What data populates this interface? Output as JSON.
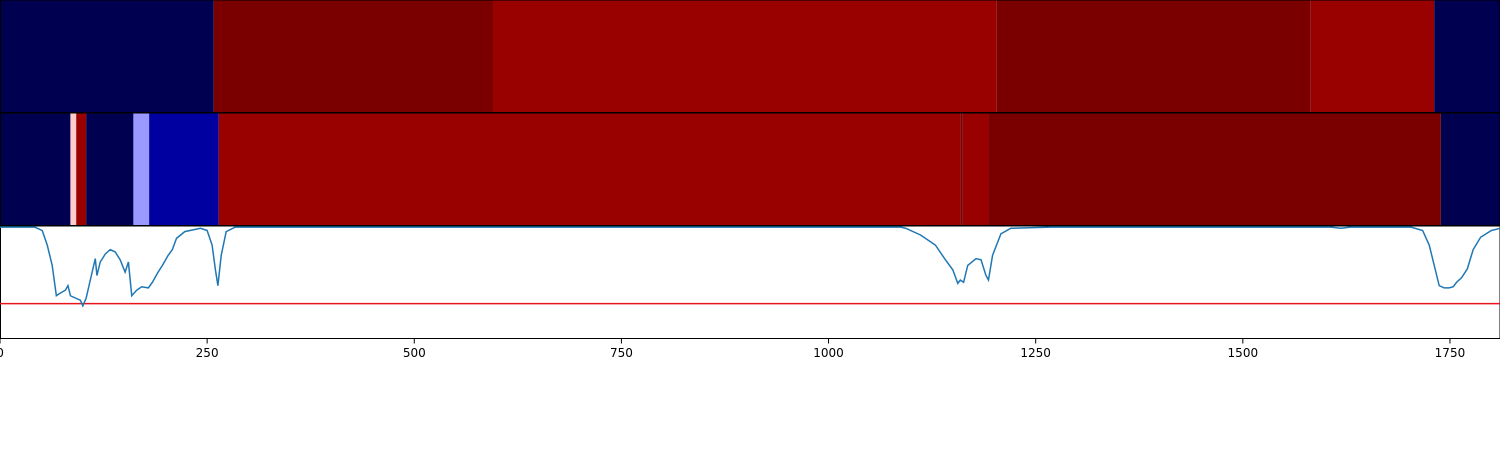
{
  "chart_data": [
    {
      "type": "segments",
      "xlim": [
        0,
        1811
      ],
      "segments": [
        {
          "start": 0,
          "end": 258,
          "color": "#000050"
        },
        {
          "start": 258,
          "end": 595,
          "color": "#7a0000"
        },
        {
          "start": 595,
          "end": 1203,
          "color": "#990000"
        },
        {
          "start": 1203,
          "end": 1582,
          "color": "#7a0000"
        },
        {
          "start": 1582,
          "end": 1731,
          "color": "#990000"
        },
        {
          "start": 1731,
          "end": 1811,
          "color": "#000050"
        }
      ]
    },
    {
      "type": "segments",
      "xlim": [
        0,
        1811
      ],
      "segments": [
        {
          "start": 0,
          "end": 85,
          "color": "#000050"
        },
        {
          "start": 85,
          "end": 92,
          "color": "#ffcccc"
        },
        {
          "start": 92,
          "end": 104,
          "color": "#990000"
        },
        {
          "start": 104,
          "end": 161,
          "color": "#000050"
        },
        {
          "start": 161,
          "end": 180,
          "color": "#9999ff"
        },
        {
          "start": 180,
          "end": 264,
          "color": "#0000a0"
        },
        {
          "start": 264,
          "end": 1159,
          "color": "#990000"
        },
        {
          "start": 1159,
          "end": 1162,
          "color": "#7a0000"
        },
        {
          "start": 1162,
          "end": 1193,
          "color": "#990000"
        },
        {
          "start": 1193,
          "end": 1739,
          "color": "#7a0000"
        },
        {
          "start": 1739,
          "end": 1811,
          "color": "#000050"
        }
      ]
    },
    {
      "type": "line",
      "xlim": [
        0,
        1811
      ],
      "ylim": [
        0,
        1
      ],
      "xticks": [
        0,
        250,
        500,
        750,
        1000,
        1250,
        1500,
        1750
      ],
      "color": "#1f77b4",
      "threshold": 0.31,
      "threshold_color": "#e8141c",
      "x": [
        0,
        42,
        51,
        57,
        63,
        68,
        72,
        79,
        82,
        85,
        91,
        97,
        100,
        104,
        109,
        115,
        117,
        121,
        127,
        133,
        139,
        145,
        151,
        155,
        159,
        165,
        171,
        179,
        184,
        190,
        196,
        203,
        208,
        213,
        223,
        242,
        250,
        256,
        260,
        263,
        267,
        273,
        284,
        362,
        1087,
        1093,
        1111,
        1129,
        1141,
        1150,
        1156,
        1159,
        1163,
        1168,
        1178,
        1184,
        1190,
        1193,
        1198,
        1208,
        1220,
        1268,
        1606,
        1618,
        1630,
        1703,
        1717,
        1725,
        1731,
        1737,
        1743,
        1749,
        1754,
        1758,
        1764,
        1771,
        1778,
        1787,
        1800,
        1811
      ],
      "values": [
        0.99,
        0.99,
        0.96,
        0.83,
        0.65,
        0.38,
        0.4,
        0.43,
        0.47,
        0.38,
        0.36,
        0.34,
        0.29,
        0.36,
        0.52,
        0.71,
        0.56,
        0.68,
        0.75,
        0.79,
        0.77,
        0.7,
        0.59,
        0.68,
        0.38,
        0.43,
        0.46,
        0.45,
        0.5,
        0.58,
        0.65,
        0.74,
        0.79,
        0.89,
        0.95,
        0.98,
        0.96,
        0.83,
        0.61,
        0.47,
        0.74,
        0.95,
        0.99,
        0.99,
        0.99,
        0.98,
        0.92,
        0.83,
        0.7,
        0.61,
        0.49,
        0.52,
        0.5,
        0.65,
        0.71,
        0.7,
        0.56,
        0.52,
        0.74,
        0.93,
        0.98,
        0.99,
        0.99,
        0.98,
        0.99,
        0.99,
        0.96,
        0.83,
        0.65,
        0.47,
        0.45,
        0.45,
        0.46,
        0.5,
        0.54,
        0.62,
        0.79,
        0.9,
        0.96,
        0.98
      ]
    }
  ]
}
